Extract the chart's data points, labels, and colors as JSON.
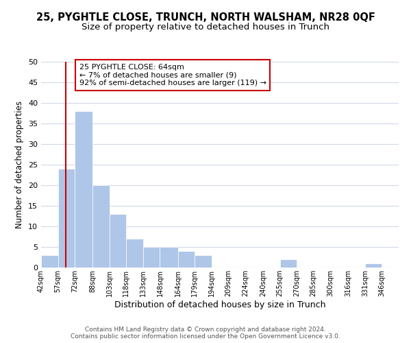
{
  "title": "25, PYGHTLE CLOSE, TRUNCH, NORTH WALSHAM, NR28 0QF",
  "subtitle": "Size of property relative to detached houses in Trunch",
  "xlabel": "Distribution of detached houses by size in Trunch",
  "ylabel": "Number of detached properties",
  "bar_edges": [
    42,
    57,
    72,
    88,
    103,
    118,
    133,
    148,
    164,
    179,
    194,
    209,
    224,
    240,
    255,
    270,
    285,
    300,
    316,
    331,
    346,
    361
  ],
  "bar_heights": [
    3,
    24,
    38,
    20,
    13,
    7,
    5,
    5,
    4,
    3,
    0,
    0,
    0,
    0,
    2,
    0,
    0,
    0,
    0,
    1,
    0
  ],
  "bar_color": "#aec6e8",
  "bar_edgecolor": "#ffffff",
  "bar_linewidth": 0.5,
  "ylim": [
    0,
    50
  ],
  "yticks": [
    0,
    5,
    10,
    15,
    20,
    25,
    30,
    35,
    40,
    45,
    50
  ],
  "property_size": 64,
  "red_line_color": "#cc0000",
  "annotation_text": "25 PYGHTLE CLOSE: 64sqm\n← 7% of detached houses are smaller (9)\n92% of semi-detached houses are larger (119) →",
  "annotation_box_color": "#ffffff",
  "annotation_box_edgecolor": "#cc0000",
  "footer_line1": "Contains HM Land Registry data © Crown copyright and database right 2024.",
  "footer_line2": "Contains public sector information licensed under the Open Government Licence v3.0.",
  "background_color": "#ffffff",
  "grid_color": "#d0d8e8",
  "title_fontsize": 10.5,
  "subtitle_fontsize": 9.5,
  "xlabel_fontsize": 9,
  "ylabel_fontsize": 8.5,
  "xtick_fontsize": 7,
  "ytick_fontsize": 8,
  "footer_fontsize": 6.5,
  "annotation_fontsize": 8
}
